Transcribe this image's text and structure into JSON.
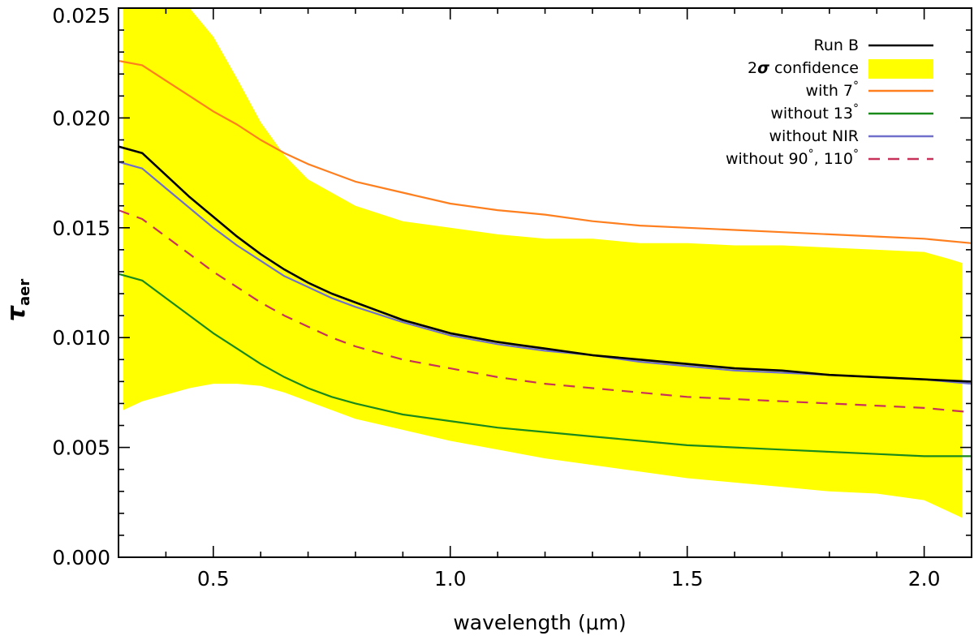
{
  "chart_data": {
    "type": "line",
    "title": "",
    "xlabel": "wavelength (μm)",
    "ylabel": {
      "symbol": "τ",
      "subscript": "aer"
    },
    "xlim": [
      0.3,
      2.1
    ],
    "ylim": [
      0.0,
      0.025
    ],
    "x_ticks": [
      {
        "value": 0.5,
        "label": "0.5"
      },
      {
        "value": 1.0,
        "label": "1.0"
      },
      {
        "value": 1.5,
        "label": "1.5"
      },
      {
        "value": 2.0,
        "label": "2.0"
      }
    ],
    "y_ticks": [
      {
        "value": 0.0,
        "label": "0.000"
      },
      {
        "value": 0.005,
        "label": "0.005"
      },
      {
        "value": 0.01,
        "label": "0.010"
      },
      {
        "value": 0.015,
        "label": "0.015"
      },
      {
        "value": 0.02,
        "label": "0.020"
      },
      {
        "value": 0.025,
        "label": "0.025"
      }
    ],
    "x_minor_step": 0.1,
    "y_minor_step": 0.001,
    "band": {
      "name": "2σ confidence",
      "label_prefix": "2",
      "label_symbol": "σ",
      "label_suffix": " confidence",
      "color": "#ffff00",
      "x": [
        0.31,
        0.35,
        0.4,
        0.45,
        0.5,
        0.55,
        0.6,
        0.65,
        0.7,
        0.8,
        0.9,
        1.0,
        1.1,
        1.2,
        1.3,
        1.4,
        1.5,
        1.6,
        1.7,
        1.8,
        1.9,
        2.0,
        2.05,
        2.08
      ],
      "upper": [
        0.025,
        0.025,
        0.025,
        0.025,
        0.0237,
        0.0218,
        0.0198,
        0.0183,
        0.0172,
        0.016,
        0.0153,
        0.015,
        0.0147,
        0.0145,
        0.0145,
        0.0143,
        0.0143,
        0.0142,
        0.0142,
        0.0141,
        0.014,
        0.0139,
        0.0136,
        0.0134
      ],
      "lower": [
        0.0067,
        0.0071,
        0.0074,
        0.0077,
        0.0079,
        0.0079,
        0.0078,
        0.0075,
        0.0071,
        0.0063,
        0.0058,
        0.0053,
        0.0049,
        0.0045,
        0.0042,
        0.0039,
        0.0036,
        0.0034,
        0.0032,
        0.003,
        0.0029,
        0.0026,
        0.0021,
        0.0018
      ]
    },
    "series": [
      {
        "name": "Run B",
        "label": "Run B",
        "color": "#000000",
        "dash": "solid",
        "x": [
          0.3,
          0.35,
          0.4,
          0.45,
          0.5,
          0.55,
          0.6,
          0.65,
          0.7,
          0.75,
          0.8,
          0.9,
          1.0,
          1.1,
          1.2,
          1.3,
          1.4,
          1.5,
          1.6,
          1.7,
          1.8,
          1.9,
          2.0,
          2.1
        ],
        "values": [
          0.0187,
          0.0184,
          0.0174,
          0.0164,
          0.0155,
          0.0146,
          0.0138,
          0.0131,
          0.0125,
          0.012,
          0.0116,
          0.0108,
          0.0102,
          0.0098,
          0.0095,
          0.0092,
          0.009,
          0.0088,
          0.0086,
          0.0085,
          0.0083,
          0.0082,
          0.0081,
          0.008
        ]
      },
      {
        "name": "with 7°",
        "label": "with 7",
        "label_sup": "°",
        "color": "#ff7f1e",
        "dash": "solid",
        "x": [
          0.3,
          0.35,
          0.4,
          0.45,
          0.5,
          0.55,
          0.6,
          0.65,
          0.7,
          0.75,
          0.8,
          0.9,
          1.0,
          1.1,
          1.2,
          1.3,
          1.4,
          1.5,
          1.6,
          1.7,
          1.8,
          1.9,
          2.0,
          2.1
        ],
        "values": [
          0.0226,
          0.0224,
          0.0217,
          0.021,
          0.0203,
          0.0197,
          0.019,
          0.0184,
          0.0179,
          0.0175,
          0.0171,
          0.0166,
          0.0161,
          0.0158,
          0.0156,
          0.0153,
          0.0151,
          0.015,
          0.0149,
          0.0148,
          0.0147,
          0.0146,
          0.0145,
          0.0143
        ]
      },
      {
        "name": "without 13°",
        "label": "without 13",
        "label_sup": "°",
        "color": "#1a8a1a",
        "dash": "solid",
        "x": [
          0.3,
          0.35,
          0.4,
          0.45,
          0.5,
          0.55,
          0.6,
          0.65,
          0.7,
          0.75,
          0.8,
          0.9,
          1.0,
          1.1,
          1.2,
          1.3,
          1.4,
          1.5,
          1.6,
          1.7,
          1.8,
          1.9,
          2.0,
          2.1
        ],
        "values": [
          0.0129,
          0.0126,
          0.0118,
          0.011,
          0.0102,
          0.0095,
          0.0088,
          0.0082,
          0.0077,
          0.0073,
          0.007,
          0.0065,
          0.0062,
          0.0059,
          0.0057,
          0.0055,
          0.0053,
          0.0051,
          0.005,
          0.0049,
          0.0048,
          0.0047,
          0.0046,
          0.0046
        ]
      },
      {
        "name": "without NIR",
        "label": "without NIR",
        "color": "#7070cc",
        "dash": "solid",
        "x": [
          0.3,
          0.35,
          0.4,
          0.45,
          0.5,
          0.55,
          0.6,
          0.65,
          0.7,
          0.75,
          0.8,
          0.9,
          1.0,
          1.1,
          1.2,
          1.3,
          1.4,
          1.5,
          1.6,
          1.7,
          1.8,
          1.9,
          2.0,
          2.1
        ],
        "values": [
          0.018,
          0.0177,
          0.0168,
          0.0159,
          0.015,
          0.0142,
          0.0135,
          0.0128,
          0.0123,
          0.0118,
          0.0114,
          0.0107,
          0.0101,
          0.0097,
          0.0094,
          0.0092,
          0.0089,
          0.0087,
          0.0085,
          0.0084,
          0.0083,
          0.0082,
          0.0081,
          0.0079
        ]
      },
      {
        "name": "without 90°, 110°",
        "label": "without 90",
        "label_sup": "°",
        "label_mid": ", 110",
        "label_sup2": "°",
        "color": "#c8325a",
        "dash": "dashed",
        "x": [
          0.3,
          0.35,
          0.4,
          0.45,
          0.5,
          0.55,
          0.6,
          0.65,
          0.7,
          0.75,
          0.8,
          0.9,
          1.0,
          1.1,
          1.2,
          1.3,
          1.4,
          1.5,
          1.6,
          1.7,
          1.8,
          1.9,
          2.0,
          2.1
        ],
        "values": [
          0.0158,
          0.0154,
          0.0146,
          0.0138,
          0.013,
          0.0123,
          0.0116,
          0.011,
          0.0105,
          0.01,
          0.0096,
          0.009,
          0.0086,
          0.0082,
          0.0079,
          0.0077,
          0.0075,
          0.0073,
          0.0072,
          0.0071,
          0.007,
          0.0069,
          0.0068,
          0.0066
        ]
      }
    ],
    "legend": {
      "position": "top-right",
      "order": [
        "Run B",
        "2σ confidence",
        "with 7°",
        "without 13°",
        "without NIR",
        "without 90°, 110°"
      ]
    }
  }
}
